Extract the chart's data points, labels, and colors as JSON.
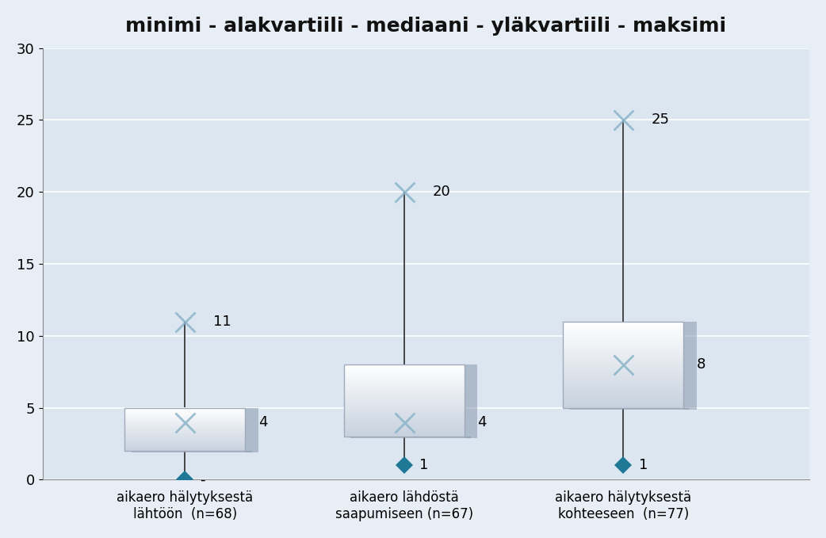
{
  "title": "minimi - alakvartiili - mediaani - yläkvartiili - maksimi",
  "categories": [
    "aikaero hälytyksestä\nlähtöön  (n=68)",
    "aikaero lähdöstä\nsaapumiseen (n=67)",
    "aikaero hälytyksestä\nkohteeseen  (n=77)"
  ],
  "boxes": [
    {
      "min": 0,
      "q1": 2,
      "median": 4,
      "q3": 5,
      "max": 11,
      "min_label": "-",
      "median_label": "4",
      "max_label": "11"
    },
    {
      "min": 1,
      "q1": 3,
      "median": 4,
      "q3": 8,
      "max": 20,
      "min_label": "1",
      "median_label": "4",
      "max_label": "20"
    },
    {
      "min": 1,
      "q1": 5,
      "median": 8,
      "q3": 11,
      "max": 25,
      "min_label": "1",
      "median_label": "8",
      "max_label": "25"
    }
  ],
  "ylim": [
    0,
    30
  ],
  "yticks": [
    0,
    5,
    10,
    15,
    20,
    25,
    30
  ],
  "bg_color": "#dce6f1",
  "outer_bg_color": "#e8eef5",
  "whisker_color": "#2a2a2a",
  "diamond_color": "#1e7896",
  "x_marker_color": "#8ab4c8",
  "title_fontsize": 18,
  "tick_fontsize": 13,
  "label_fontsize": 12,
  "annotation_fontsize": 13,
  "box_width": 0.55
}
